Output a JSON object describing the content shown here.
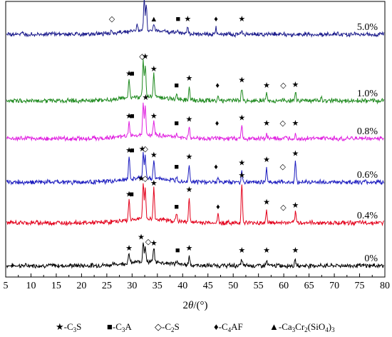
{
  "chart_data": {
    "type": "line",
    "xlabel": "2θ/(°)",
    "xlim": [
      5,
      80
    ],
    "x_ticks": [
      5,
      10,
      15,
      20,
      25,
      30,
      35,
      40,
      45,
      50,
      55,
      60,
      65,
      70,
      75,
      80
    ],
    "y_ticks_shown": false,
    "grid": false,
    "series": [
      {
        "name": "0%",
        "color": "#000000",
        "baseline": 0,
        "intensity_scale": 1.0,
        "peaks": [
          [
            29.4,
            0.6
          ],
          [
            32.2,
            1.3
          ],
          [
            32.6,
            1.0
          ],
          [
            34.3,
            0.9
          ],
          [
            38.8,
            0.2
          ],
          [
            41.3,
            0.6
          ],
          [
            51.7,
            0.4
          ],
          [
            56.6,
            0.3
          ],
          [
            62.3,
            0.3
          ]
        ],
        "markers": [
          {
            "x": 29.4,
            "type": "C3S"
          },
          {
            "x": 31.8,
            "type": "C3S"
          },
          {
            "x": 33.2,
            "type": "C2S"
          },
          {
            "x": 34.3,
            "type": "C3S"
          },
          {
            "x": 39.0,
            "type": "C3A"
          },
          {
            "x": 41.3,
            "type": "C3S"
          },
          {
            "x": 51.7,
            "type": "C3S"
          },
          {
            "x": 56.6,
            "type": "C3S"
          },
          {
            "x": 62.3,
            "type": "C3S"
          }
        ]
      },
      {
        "name": "0.4%",
        "color": "#e3001b",
        "baseline": 1,
        "intensity_scale": 1.0,
        "peaks": [
          [
            29.4,
            1.3
          ],
          [
            32.2,
            2.3
          ],
          [
            32.6,
            2.0
          ],
          [
            34.3,
            2.0
          ],
          [
            38.8,
            0.5
          ],
          [
            41.3,
            1.6
          ],
          [
            47.0,
            0.5
          ],
          [
            51.7,
            2.5
          ],
          [
            56.6,
            0.8
          ],
          [
            62.3,
            0.6
          ]
        ],
        "markers": [
          {
            "x": 29.4,
            "type": "C3S"
          },
          {
            "x": 29.9,
            "type": "C3A"
          },
          {
            "x": 31.8,
            "type": "C3S"
          },
          {
            "x": 32.6,
            "type": "C2S"
          },
          {
            "x": 34.3,
            "type": "C3S"
          },
          {
            "x": 38.8,
            "type": "C3A"
          },
          {
            "x": 41.3,
            "type": "C3S"
          },
          {
            "x": 47.0,
            "type": "C4AF"
          },
          {
            "x": 51.7,
            "type": "C3S"
          },
          {
            "x": 56.6,
            "type": "C3S"
          },
          {
            "x": 59.9,
            "type": "C2S"
          },
          {
            "x": 62.3,
            "type": "C3S"
          }
        ]
      },
      {
        "name": "0.6%",
        "color": "#1c1cbf",
        "baseline": 2,
        "intensity_scale": 1.0,
        "peaks": [
          [
            29.4,
            1.5
          ],
          [
            32.2,
            1.6
          ],
          [
            32.6,
            1.4
          ],
          [
            34.3,
            1.2
          ],
          [
            38.8,
            0.3
          ],
          [
            41.3,
            1.1
          ],
          [
            47.0,
            0.3
          ],
          [
            51.7,
            0.7
          ],
          [
            56.6,
            0.9
          ],
          [
            62.3,
            1.3
          ]
        ],
        "markers": [
          {
            "x": 29.4,
            "type": "C3S"
          },
          {
            "x": 30.0,
            "type": "C3A"
          },
          {
            "x": 32.0,
            "type": "C3S"
          },
          {
            "x": 32.6,
            "type": "C2S"
          },
          {
            "x": 34.3,
            "type": "C3S"
          },
          {
            "x": 38.8,
            "type": "C3A"
          },
          {
            "x": 41.3,
            "type": "C3S"
          },
          {
            "x": 46.6,
            "type": "C4AF"
          },
          {
            "x": 51.7,
            "type": "C3S"
          },
          {
            "x": 56.6,
            "type": "C3S"
          },
          {
            "x": 59.8,
            "type": "C2S"
          },
          {
            "x": 62.3,
            "type": "C3S"
          }
        ]
      },
      {
        "name": "0.8%",
        "color": "#e020e0",
        "baseline": 3,
        "intensity_scale": 1.0,
        "peaks": [
          [
            29.4,
            0.9
          ],
          [
            32.2,
            2.1
          ],
          [
            32.6,
            1.9
          ],
          [
            34.3,
            0.9
          ],
          [
            38.8,
            0.2
          ],
          [
            41.3,
            0.7
          ],
          [
            51.7,
            0.8
          ],
          [
            56.6,
            0.3
          ],
          [
            62.3,
            0.3
          ]
        ],
        "markers": [
          {
            "x": 29.4,
            "type": "C3S"
          },
          {
            "x": 30.0,
            "type": "C3A"
          },
          {
            "x": 32.7,
            "type": "C3S"
          },
          {
            "x": 34.3,
            "type": "C3S"
          },
          {
            "x": 38.8,
            "type": "C3A"
          },
          {
            "x": 41.3,
            "type": "C3S"
          },
          {
            "x": 46.8,
            "type": "C4AF"
          },
          {
            "x": 51.7,
            "type": "C3S"
          },
          {
            "x": 56.6,
            "type": "C3S"
          },
          {
            "x": 59.8,
            "type": "C2S"
          },
          {
            "x": 62.3,
            "type": "C3S"
          }
        ]
      },
      {
        "name": "1.0%",
        "color": "#1f8a1f",
        "baseline": 4,
        "intensity_scale": 1.0,
        "peaks": [
          [
            29.4,
            1.2
          ],
          [
            32.2,
            2.3
          ],
          [
            32.6,
            2.1
          ],
          [
            34.3,
            1.5
          ],
          [
            38.8,
            0.3
          ],
          [
            41.3,
            0.9
          ],
          [
            47.0,
            0.3
          ],
          [
            51.7,
            0.8
          ],
          [
            56.6,
            0.4
          ],
          [
            62.3,
            0.5
          ],
          [
            67.4,
            0.3
          ]
        ],
        "markers": [
          {
            "x": 29.4,
            "type": "C3S"
          },
          {
            "x": 30.0,
            "type": "C3A"
          },
          {
            "x": 32.0,
            "type": "C2S"
          },
          {
            "x": 32.6,
            "type": "C3S"
          },
          {
            "x": 34.3,
            "type": "C3S"
          },
          {
            "x": 38.8,
            "type": "C3A"
          },
          {
            "x": 41.3,
            "type": "C3S"
          },
          {
            "x": 46.9,
            "type": "C4AF"
          },
          {
            "x": 51.7,
            "type": "C3S"
          },
          {
            "x": 56.6,
            "type": "C3S"
          },
          {
            "x": 59.9,
            "type": "C2S"
          },
          {
            "x": 62.3,
            "type": "C3S"
          }
        ]
      },
      {
        "name": "5.0%",
        "color": "#1c1c8c",
        "baseline": 5,
        "intensity_scale": 1.0,
        "peaks": [
          [
            26.0,
            0.2
          ],
          [
            31.0,
            0.4
          ],
          [
            32.4,
            2.0
          ],
          [
            32.8,
            1.6
          ],
          [
            34.3,
            0.4
          ],
          [
            39.0,
            0.2
          ],
          [
            41.0,
            0.4
          ],
          [
            46.6,
            0.4
          ],
          [
            51.7,
            0.2
          ]
        ],
        "markers": [
          {
            "x": 26.0,
            "type": "C2S"
          },
          {
            "x": 31.8,
            "type": "C2S"
          },
          {
            "x": 32.9,
            "type": "C2S"
          },
          {
            "x": 34.3,
            "type": "CCS"
          },
          {
            "x": 39.1,
            "type": "C3A"
          },
          {
            "x": 41.0,
            "type": "C3S"
          },
          {
            "x": 46.6,
            "type": "C4AF"
          },
          {
            "x": 51.7,
            "type": "C3S"
          }
        ]
      }
    ],
    "legend": {
      "placement": "bottom",
      "entries": [
        {
          "key": "C3S",
          "symbol": "★",
          "label_parts": [
            "-C",
            "3",
            "S"
          ]
        },
        {
          "key": "C3A",
          "symbol": "■",
          "label_parts": [
            "-C",
            "3",
            "A"
          ]
        },
        {
          "key": "C2S",
          "symbol": "◇",
          "label_parts": [
            "-C",
            "2",
            "S"
          ]
        },
        {
          "key": "C4AF",
          "symbol": "♦",
          "label_parts": [
            "-C",
            "4",
            "AF"
          ]
        },
        {
          "key": "CCS",
          "symbol": "▲",
          "label_parts": [
            "-Ca",
            "3",
            "Cr",
            "2",
            "(SiO",
            "4",
            ")",
            "3"
          ]
        }
      ]
    }
  }
}
